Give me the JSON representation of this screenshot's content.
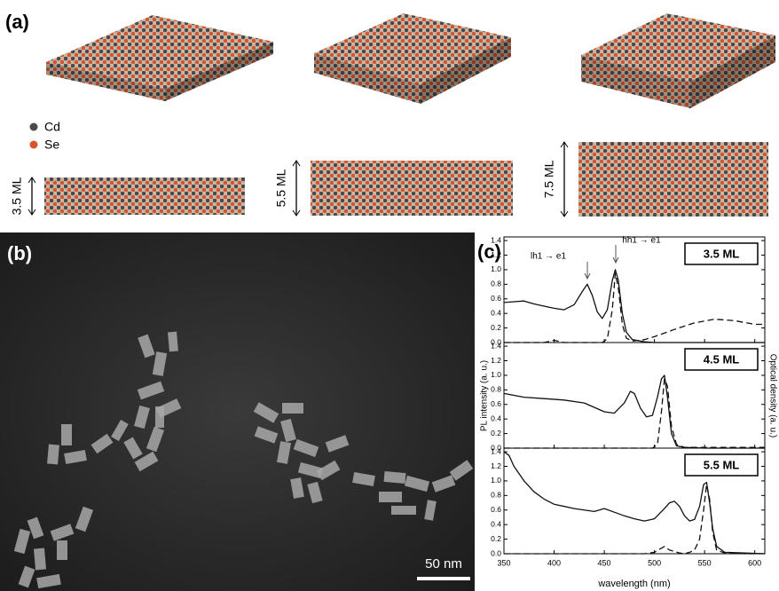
{
  "panels": {
    "a": {
      "label": "(a)",
      "legend": [
        "Cd",
        "Se"
      ],
      "thickness_labels": [
        "3.5 ML",
        "5.5 ML",
        "7.5 ML"
      ]
    },
    "b": {
      "label": "(b)",
      "scale_bar": "50 nm"
    },
    "c": {
      "label": "(c)",
      "ylabel": "PL intensity (a. u.)",
      "y2label": "Optical density (a. u.)",
      "xlabel": "wavelength (nm)"
    }
  },
  "chart_data": [
    {
      "type": "line",
      "label": "3.5 ML",
      "annotations": [
        "lh1 → e1",
        "hh1 → e1"
      ],
      "x": [
        350,
        360,
        370,
        380,
        390,
        400,
        410,
        420,
        428,
        433,
        438,
        443,
        448,
        453,
        458,
        461,
        464,
        468,
        472,
        478,
        490,
        500,
        520,
        540,
        560,
        580,
        600,
        610
      ],
      "series": [
        {
          "style": "solid",
          "color": "#111111",
          "values": [
            0.55,
            0.56,
            0.57,
            0.53,
            0.5,
            0.47,
            0.45,
            0.52,
            0.7,
            0.8,
            0.65,
            0.42,
            0.33,
            0.45,
            0.85,
            1.0,
            0.85,
            0.4,
            0.14,
            0.04,
            0.01,
            0.0,
            0.0,
            0.0,
            0.0,
            0.0,
            0.0,
            0.0
          ]
        },
        {
          "style": "dashed",
          "color": "#111111",
          "values": [
            0,
            0,
            0,
            0,
            0,
            0.03,
            0,
            0,
            0,
            0,
            0,
            0,
            0,
            0.05,
            0.45,
            0.95,
            0.75,
            0.25,
            0.06,
            0.02,
            0.04,
            0.08,
            0.18,
            0.27,
            0.32,
            0.3,
            0.25,
            0.25
          ]
        }
      ],
      "xlim": [
        350,
        610
      ],
      "xticks": [
        350,
        400,
        450,
        500,
        550,
        600
      ],
      "ylim": [
        0,
        1.45
      ],
      "yticks": [
        {
          "value": 0,
          "label": "0.0"
        },
        0.2,
        0.4,
        0.6,
        0.8,
        {
          "value": 1,
          "label": "1.0"
        },
        1.2,
        1.4
      ]
    },
    {
      "type": "line",
      "label": "4.5 ML",
      "x": [
        350,
        370,
        390,
        410,
        430,
        450,
        460,
        470,
        476,
        480,
        486,
        492,
        498,
        503,
        507,
        510,
        513,
        517,
        522,
        530,
        550,
        570,
        590,
        610
      ],
      "series": [
        {
          "style": "solid",
          "color": "#111111",
          "values": [
            0.75,
            0.7,
            0.68,
            0.66,
            0.62,
            0.5,
            0.48,
            0.62,
            0.78,
            0.75,
            0.55,
            0.43,
            0.45,
            0.7,
            0.95,
            1.0,
            0.7,
            0.2,
            0.03,
            0.01,
            0.0,
            0.0,
            0.0,
            0.0
          ]
        },
        {
          "style": "dashed",
          "color": "#111111",
          "values": [
            0,
            0,
            0,
            0,
            0,
            0,
            0,
            0,
            0,
            0,
            0,
            0,
            0,
            0.05,
            0.5,
            0.95,
            0.85,
            0.3,
            0.05,
            0.01,
            0.01,
            0.01,
            0.01,
            0.01
          ]
        }
      ],
      "xlim": [
        350,
        610
      ],
      "xticks": [
        350,
        400,
        450,
        500,
        550,
        600
      ],
      "ylim": [
        0,
        1.45
      ],
      "yticks": [
        {
          "value": 0,
          "label": "0.0"
        },
        0.2,
        0.4,
        0.6,
        0.8,
        {
          "value": 1,
          "label": "1.0"
        },
        1.2,
        1.4
      ]
    },
    {
      "type": "line",
      "label": "5.5 ML",
      "x": [
        350,
        355,
        360,
        370,
        380,
        390,
        400,
        420,
        440,
        450,
        460,
        470,
        480,
        490,
        500,
        510,
        515,
        520,
        525,
        530,
        535,
        540,
        545,
        549,
        552,
        555,
        558,
        562,
        570,
        590,
        610
      ],
      "series": [
        {
          "style": "solid",
          "color": "#111111",
          "values": [
            1.4,
            1.35,
            1.2,
            1.0,
            0.85,
            0.75,
            0.68,
            0.62,
            0.58,
            0.62,
            0.57,
            0.52,
            0.48,
            0.45,
            0.48,
            0.62,
            0.7,
            0.72,
            0.65,
            0.52,
            0.45,
            0.47,
            0.65,
            0.95,
            0.98,
            0.7,
            0.35,
            0.1,
            0.02,
            0.01,
            0.0
          ]
        },
        {
          "style": "dashed",
          "color": "#111111",
          "values": [
            0,
            0,
            0,
            0,
            0,
            0,
            0,
            0,
            0,
            0,
            0,
            0,
            0,
            0,
            0.02,
            0.1,
            0.05,
            0.03,
            0.01,
            0,
            0.02,
            0.05,
            0.2,
            0.6,
            0.95,
            0.75,
            0.3,
            0.05,
            0.01,
            0,
            0
          ]
        }
      ],
      "xlim": [
        350,
        610
      ],
      "xticks": [
        350,
        400,
        450,
        500,
        550,
        600
      ],
      "ylim": [
        0,
        1.45
      ],
      "yticks": [
        {
          "value": 0,
          "label": "0.0"
        },
        0.2,
        0.4,
        0.6,
        0.8,
        {
          "value": 1,
          "label": "1.0"
        },
        1.2,
        1.4
      ]
    }
  ]
}
